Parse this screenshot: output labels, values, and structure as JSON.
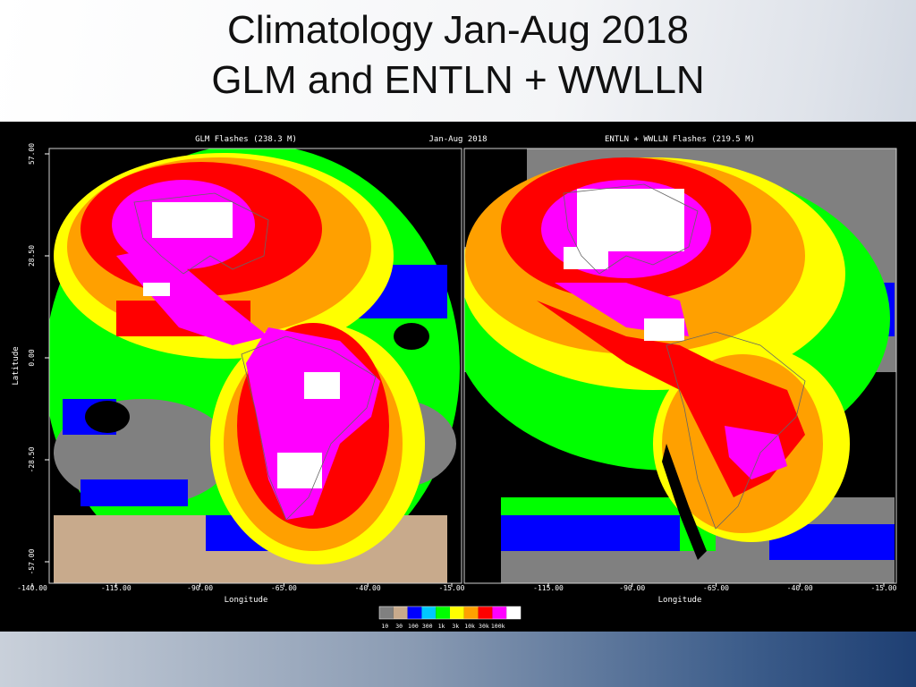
{
  "slide": {
    "title_line1": "Climatology Jan-Aug 2018",
    "title_line2": "GLM  and  ENTLN + WWLLN"
  },
  "figure": {
    "left_panel_title": "GLM Flashes (238.3 M)",
    "center_title": "Jan-Aug 2018",
    "right_panel_title": "ENTLN + WWLLN Flashes (219.5 M)",
    "y_axis_label": "Latitude",
    "x_axis_label": "Longitude",
    "lat_ticks": [
      "57.00",
      "28.50",
      "0.00",
      "-28.50",
      "-57.00"
    ],
    "left_lon_ticks": [
      "-140.00",
      "-115.00",
      "-90.00",
      "-65.00",
      "-40.00",
      "-15.00"
    ],
    "right_lon_ticks": [
      "-115.00",
      "-90.00",
      "-65.00",
      "-40.00",
      "-15.00"
    ],
    "legend": {
      "labels": [
        "10",
        "30",
        "100",
        "300",
        "1k",
        "3k",
        "10k",
        "30k",
        "100k"
      ],
      "colors": [
        "#808080",
        "#c8aa8c",
        "#0000ff",
        "#00c8ff",
        "#00ff00",
        "#ffff00",
        "#ffa000",
        "#ff0000",
        "#ff00ff",
        "#ffffff"
      ]
    }
  }
}
